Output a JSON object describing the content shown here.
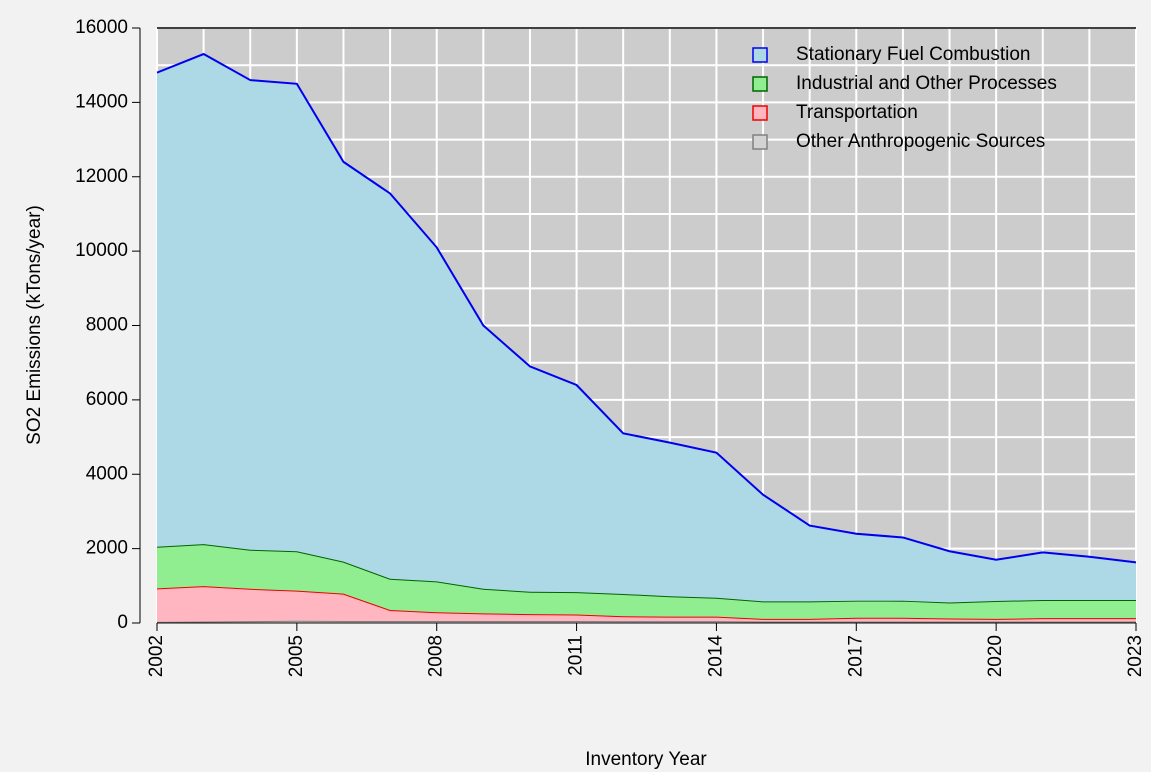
{
  "chart_data": {
    "type": "stacked-area",
    "x_label": "Inventory Year",
    "y_label": "SO2 Emissions (kTons/year)",
    "x": [
      2002,
      2003,
      2004,
      2005,
      2006,
      2007,
      2008,
      2009,
      2010,
      2011,
      2012,
      2013,
      2014,
      2015,
      2016,
      2017,
      2018,
      2019,
      2020,
      2021,
      2022,
      2023
    ],
    "series": [
      {
        "name": "Stationary Fuel Combustion",
        "color": "#add8e6",
        "edge": "#0000ee",
        "values": [
          12750,
          13180,
          12630,
          12570,
          10750,
          10360,
          8980,
          7080,
          6060,
          5570,
          4320,
          4130,
          3900,
          2870,
          2040,
          1800,
          1700,
          1380,
          1110,
          1280,
          1160,
          1010
        ]
      },
      {
        "name": "Industrial and Other Processes",
        "color": "#90ee90",
        "edge": "#006400",
        "values": [
          1120,
          1130,
          1050,
          1060,
          860,
          840,
          830,
          660,
          600,
          600,
          600,
          550,
          510,
          470,
          470,
          460,
          460,
          430,
          480,
          490,
          490,
          490
        ]
      },
      {
        "name": "Transportation",
        "color": "#ffb6c1",
        "edge": "#ee0000",
        "values": [
          900,
          950,
          870,
          810,
          735,
          295,
          235,
          205,
          185,
          175,
          130,
          120,
          120,
          70,
          70,
          100,
          100,
          80,
          70,
          90,
          90,
          90
        ]
      },
      {
        "name": "Other Anthropogenic Sources",
        "color": "#d3d3d3",
        "edge": "#808080",
        "values": [
          30,
          40,
          50,
          60,
          55,
          55,
          55,
          55,
          55,
          55,
          50,
          50,
          50,
          40,
          40,
          40,
          40,
          40,
          40,
          40,
          40,
          40
        ]
      }
    ],
    "xlim": [
      2002,
      2023
    ],
    "xticks": [
      2002,
      2005,
      2008,
      2011,
      2014,
      2017,
      2020,
      2023
    ],
    "ylim": [
      0,
      16000
    ],
    "yticks": [
      0,
      2000,
      4000,
      6000,
      8000,
      10000,
      12000,
      14000,
      16000
    ],
    "grid": true,
    "legend": "top-right"
  }
}
